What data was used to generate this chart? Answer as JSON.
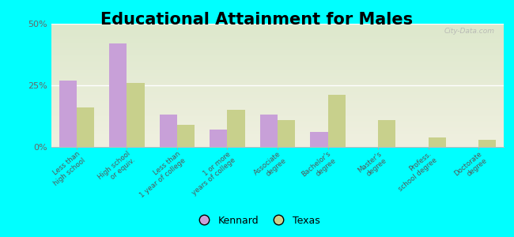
{
  "title": "Educational Attainment for Males",
  "categories": [
    "Less than\nhigh school",
    "High school\nor equiv.",
    "Less than\n1 year of college",
    "1 or more\nyears of college",
    "Associate\ndegree",
    "Bachelor's\ndegree",
    "Master's\ndegree",
    "Profess.\nschool degree",
    "Doctorate\ndegree"
  ],
  "kennard": [
    27,
    42,
    13,
    7,
    13,
    6,
    0,
    0,
    0
  ],
  "texas": [
    16,
    26,
    9,
    15,
    11,
    21,
    11,
    4,
    3
  ],
  "kennard_color": "#c8a0d8",
  "texas_color": "#c8d08c",
  "background_color": "#00ffff",
  "plot_bg_top": "#dde8cc",
  "plot_bg_bottom": "#f0f0e0",
  "ylim": [
    0,
    50
  ],
  "yticks": [
    0,
    25,
    50
  ],
  "ytick_labels": [
    "0%",
    "25%",
    "50%"
  ],
  "bar_width": 0.35,
  "legend_labels": [
    "Kennard",
    "Texas"
  ],
  "title_fontsize": 15,
  "watermark": "City-Data.com"
}
